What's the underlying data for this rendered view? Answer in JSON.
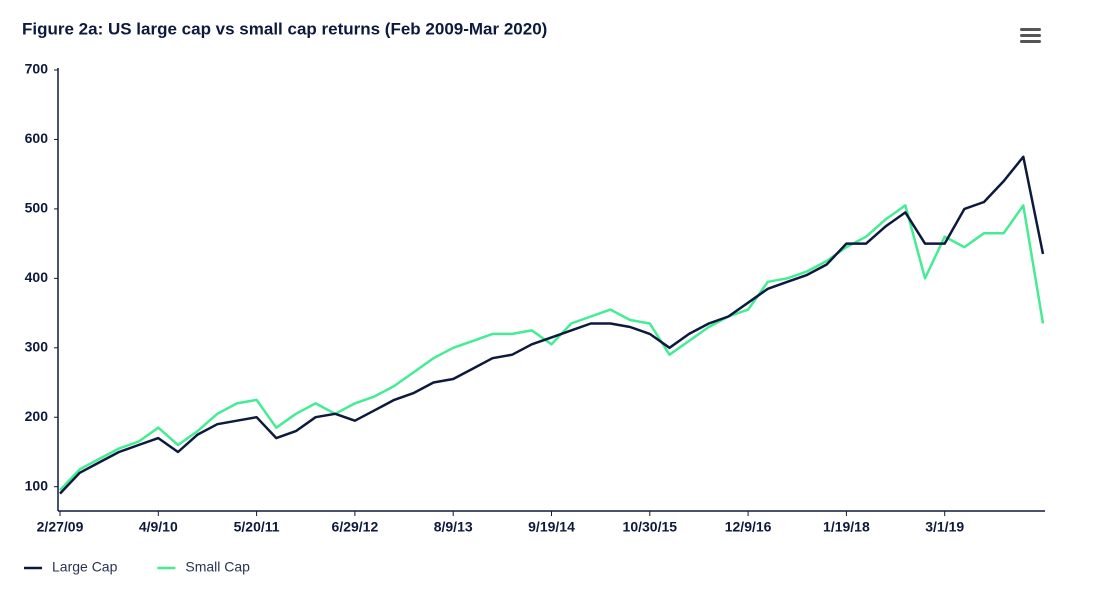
{
  "chart_data": {
    "type": "line",
    "title": "Figure 2a: US large cap vs small cap returns (Feb 2009-Mar 2020)",
    "categories": [
      "2/27/09",
      null,
      null,
      null,
      null,
      "4/9/10",
      null,
      null,
      null,
      null,
      "5/20/11",
      null,
      null,
      null,
      null,
      "6/29/12",
      null,
      null,
      null,
      null,
      "8/9/13",
      null,
      null,
      null,
      null,
      "9/19/14",
      null,
      null,
      null,
      null,
      "10/30/15",
      null,
      null,
      null,
      null,
      "12/9/16",
      null,
      null,
      null,
      null,
      "1/19/18",
      null,
      null,
      null,
      null,
      "3/1/19",
      null,
      null,
      null,
      null,
      null
    ],
    "series": [
      {
        "name": "Large Cap",
        "color": "#0d1a3d",
        "values": [
          90,
          120,
          135,
          150,
          160,
          170,
          150,
          175,
          190,
          195,
          200,
          170,
          180,
          200,
          205,
          195,
          210,
          225,
          235,
          250,
          255,
          270,
          285,
          290,
          305,
          315,
          325,
          335,
          335,
          330,
          320,
          300,
          320,
          335,
          345,
          365,
          385,
          395,
          405,
          420,
          450,
          450,
          475,
          495,
          450,
          450,
          500,
          510,
          540,
          575,
          435
        ]
      },
      {
        "name": "Small Cap",
        "color": "#45ec94",
        "values": [
          95,
          125,
          140,
          155,
          165,
          185,
          160,
          180,
          205,
          220,
          225,
          185,
          205,
          220,
          205,
          220,
          230,
          245,
          265,
          285,
          300,
          310,
          320,
          320,
          325,
          305,
          335,
          345,
          355,
          340,
          335,
          290,
          310,
          330,
          345,
          355,
          395,
          400,
          410,
          425,
          445,
          460,
          485,
          505,
          400,
          460,
          445,
          465,
          465,
          505,
          335
        ]
      }
    ],
    "ylim": [
      65,
      700
    ],
    "yticks": [
      100,
      200,
      300,
      400,
      500,
      600,
      700
    ],
    "legend": "bottom-left"
  }
}
